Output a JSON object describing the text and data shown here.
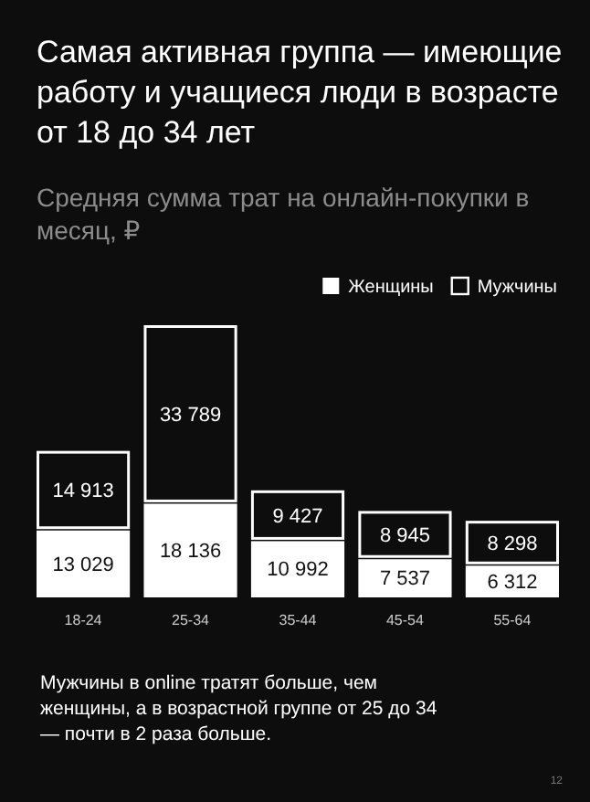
{
  "chart_data": {
    "type": "bar",
    "stacked": true,
    "title": "Самая активная группа — имеющие работу и учащиеся люди в возрасте от 18 до 34 лет",
    "subtitle": "Средняя сумма трат на онлайн-покупки в месяц, ₽",
    "categories": [
      "18-24",
      "25-34",
      "35-44",
      "45-54",
      "55-64"
    ],
    "series": [
      {
        "name": "Женщины",
        "color": "#ffffff",
        "values": [
          13029,
          18136,
          10992,
          7537,
          6312
        ]
      },
      {
        "name": "Мужчины",
        "color": "#0d0d0d",
        "values": [
          14913,
          33789,
          9427,
          8945,
          8298
        ]
      }
    ],
    "data_labels": true,
    "legend": "top right",
    "annotations": [
      "Мужчины в online тратят больше, чем женщины, а в возрастной группе от 25 до 34 — почти в 2 раза больше.",
      "12"
    ]
  }
}
